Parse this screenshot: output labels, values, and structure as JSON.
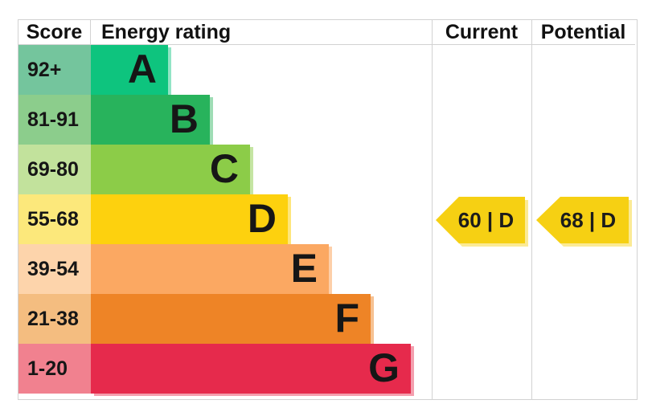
{
  "chart_data": {
    "type": "table",
    "columns": [
      "Score",
      "Energy rating",
      "Current",
      "Potential"
    ],
    "bands": [
      {
        "score_range": "92+",
        "rating": "A",
        "color": "#0ec47e",
        "score_bg": "#74c59d"
      },
      {
        "score_range": "81-91",
        "rating": "B",
        "color": "#28b35c",
        "score_bg": "#8ccd8c"
      },
      {
        "score_range": "69-80",
        "rating": "C",
        "color": "#8ccc48",
        "score_bg": "#c2e29c"
      },
      {
        "score_range": "55-68",
        "rating": "D",
        "color": "#fdd10e",
        "score_bg": "#fce87b"
      },
      {
        "score_range": "39-54",
        "rating": "E",
        "color": "#fba862",
        "score_bg": "#fdd4ab"
      },
      {
        "score_range": "21-38",
        "rating": "F",
        "color": "#ee8426",
        "score_bg": "#f4bd80"
      },
      {
        "score_range": "1-20",
        "rating": "G",
        "color": "#e62a4c",
        "score_bg": "#f1818f"
      }
    ],
    "current": {
      "score": "60",
      "rating": "D",
      "display": "60 | D",
      "arrow_color": "#f6d013"
    },
    "potential": {
      "score": "68",
      "rating": "D",
      "display": "68 | D",
      "arrow_color": "#f6d013"
    }
  }
}
